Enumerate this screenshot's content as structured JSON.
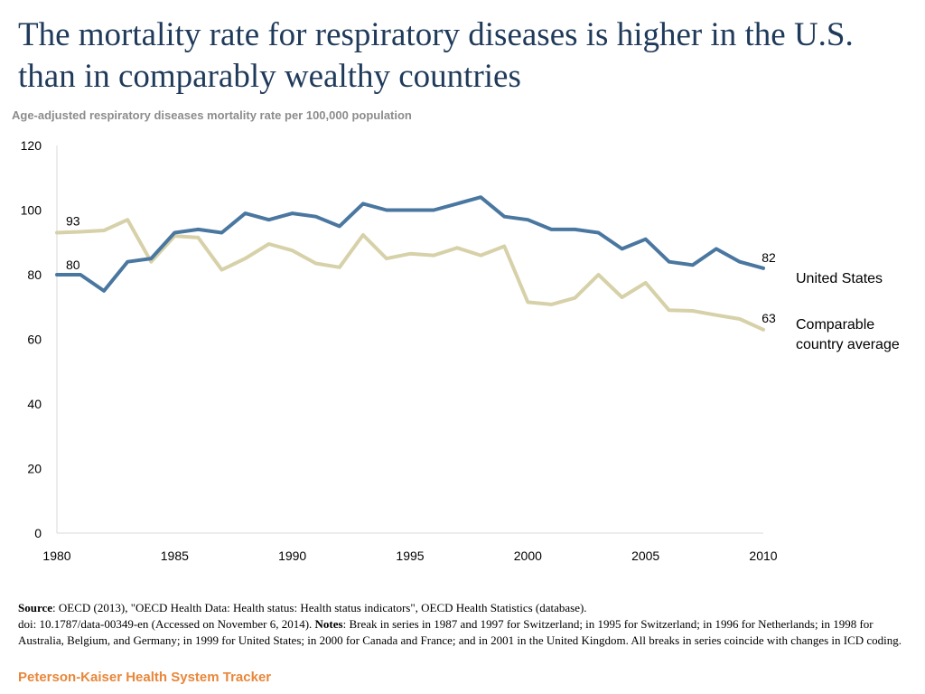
{
  "title": "The mortality rate for respiratory diseases is higher in the U.S. than in comparably wealthy countries",
  "subtitle": "Age-adjusted respiratory diseases mortality rate per 100,000 population",
  "colors": {
    "us_line": "#4a77a0",
    "comparable_line": "#d6d1a8",
    "title": "#1f3a5a",
    "brand": "#e8873a"
  },
  "chart_data": {
    "type": "line",
    "title": "Age-adjusted respiratory diseases mortality rate per 100,000 population",
    "xlabel": "",
    "ylabel": "",
    "xlim": [
      1980,
      2010
    ],
    "ylim": [
      0,
      120
    ],
    "y_ticks": [
      "0",
      "20",
      "40",
      "60",
      "80",
      "100",
      "120"
    ],
    "x_ticks": [
      "1980",
      "1985",
      "1990",
      "1995",
      "2000",
      "2005",
      "2010"
    ],
    "x": [
      1980,
      1981,
      1982,
      1983,
      1984,
      1985,
      1986,
      1987,
      1988,
      1989,
      1990,
      1991,
      1992,
      1993,
      1994,
      1995,
      1996,
      1997,
      1998,
      1999,
      2000,
      2001,
      2002,
      2003,
      2004,
      2005,
      2006,
      2007,
      2008,
      2009,
      2010
    ],
    "series": [
      {
        "name": "United States",
        "values": [
          80,
          80,
          75,
          84,
          85,
          93,
          94,
          93,
          99,
          97,
          99,
          98,
          95,
          102,
          100,
          100,
          100,
          102,
          104,
          98,
          97,
          94,
          94,
          93,
          88,
          91,
          84,
          83,
          88,
          84,
          82
        ],
        "start_label": "80",
        "end_label": "82"
      },
      {
        "name": "Comparable country average",
        "values": [
          93,
          93.3,
          93.7,
          97,
          84,
          92,
          91.5,
          81.5,
          85,
          89.5,
          87.5,
          83.5,
          82.3,
          92.3,
          85,
          86.5,
          86,
          88.3,
          86,
          88.8,
          71.5,
          70.8,
          72.8,
          80,
          73,
          77.5,
          69,
          68.8,
          67.5,
          66.3,
          63
        ],
        "start_label": "93",
        "end_label": "63"
      }
    ],
    "legend": [
      "United States",
      "Comparable country average"
    ],
    "legend_position": "right"
  },
  "notes": {
    "source_label": "Source",
    "source_text": ": OECD (2013), \"OECD Health Data: Health status: Health status indicators\", OECD Health Statistics (database).",
    "doi_text": "doi: 10.1787/data-00349-en (Accessed on November 6, 2014).",
    "notes_label": "Notes",
    "notes_text": ": Break in series in 1987 and 1997 for Switzerland;  in 1995 for Switzerland; in 1996 for Netherlands; in 1998 for Australia, Belgium, and Germany; in 1999 for United States;  in 2000 for Canada and France; and in 2001 in the United Kingdom. All breaks in series coincide with  changes in ICD coding."
  },
  "footer": {
    "brand": "Peterson-Kaiser Health System Tracker"
  }
}
